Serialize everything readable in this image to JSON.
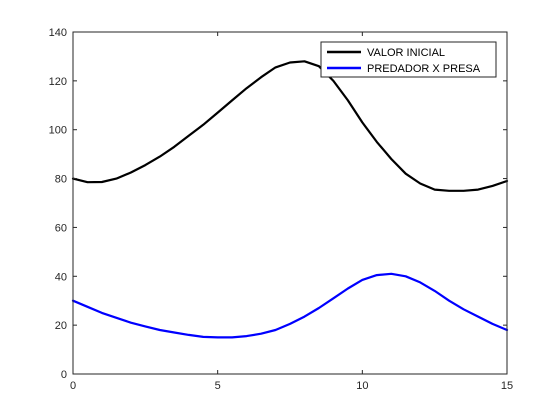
{
  "chart_data": {
    "type": "line",
    "xlim": [
      0,
      15
    ],
    "ylim": [
      0,
      140
    ],
    "xticks": [
      0,
      5,
      10,
      15
    ],
    "yticks": [
      0,
      20,
      40,
      60,
      80,
      100,
      120,
      140
    ],
    "grid": false,
    "legend_position": "top-right",
    "series": [
      {
        "name": "VALOR INICIAL",
        "color": "#000000",
        "x": [
          0,
          0.5,
          1,
          1.5,
          2,
          2.5,
          3,
          3.5,
          4,
          4.5,
          5,
          5.5,
          6,
          6.5,
          7,
          7.5,
          8,
          8.5,
          9,
          9.5,
          10,
          10.5,
          11,
          11.5,
          12,
          12.5,
          13,
          13.5,
          14,
          14.5,
          15
        ],
        "y": [
          80,
          78.5,
          78.6,
          80,
          82.5,
          85.5,
          89,
          93,
          97.5,
          102,
          107,
          112,
          117,
          121.5,
          125.5,
          127.5,
          128,
          126,
          120,
          112,
          103,
          95,
          88,
          82,
          78,
          75.5,
          75,
          75,
          75.5,
          77,
          79
        ]
      },
      {
        "name": "PREDADOR X PRESA",
        "color": "#0000ff",
        "x": [
          0,
          0.5,
          1,
          1.5,
          2,
          2.5,
          3,
          3.5,
          4,
          4.5,
          5,
          5.5,
          6,
          6.5,
          7,
          7.5,
          8,
          8.5,
          9,
          9.5,
          10,
          10.5,
          11,
          11.5,
          12,
          12.5,
          13,
          13.5,
          14,
          14.5,
          15
        ],
        "y": [
          30,
          27.5,
          25,
          23,
          21,
          19.5,
          18,
          17,
          16,
          15.2,
          15,
          15,
          15.5,
          16.5,
          18,
          20.5,
          23.5,
          27,
          31,
          35,
          38.5,
          40.5,
          41,
          40,
          37.5,
          34,
          30,
          26.5,
          23.5,
          20.5,
          18
        ]
      }
    ]
  }
}
